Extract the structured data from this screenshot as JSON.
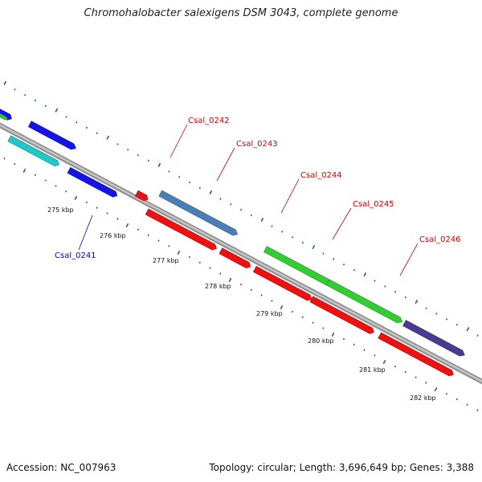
{
  "header": {
    "title": "Chromohalobacter salexigens DSM 3043, complete genome"
  },
  "footer": {
    "accession": "Accession: NC_007963",
    "summary": "Topology: circular; Length: 3,696,649 bp; Genes: 3,388"
  },
  "scale": {
    "ticks": [
      {
        "label": "275 kbp"
      },
      {
        "label": "276 kbp"
      },
      {
        "label": "277 kbp"
      },
      {
        "label": "278 kbp"
      },
      {
        "label": "279 kbp"
      },
      {
        "label": "280 kbp"
      },
      {
        "label": "281 kbp"
      },
      {
        "label": "282 kbp"
      }
    ]
  },
  "genes": {
    "labels": [
      {
        "name": "Csal_0241",
        "color": "#0000cc"
      },
      {
        "name": "Csal_0242",
        "color": "#cc0000"
      },
      {
        "name": "Csal_0243",
        "color": "#cc0000"
      },
      {
        "name": "Csal_0244",
        "color": "#cc0000"
      },
      {
        "name": "Csal_0245",
        "color": "#cc0000"
      },
      {
        "name": "Csal_0246",
        "color": "#cc0000"
      }
    ]
  },
  "colors": {
    "backbone": "#8c8c8c",
    "tick": "#1a7a1a",
    "blue_gene": "#1414e6",
    "cyan_gene": "#22c6c6",
    "red_gene": "#ee1111",
    "steelblue_gene": "#4a7fb5",
    "green_gene": "#33cc33",
    "purple_gene": "#4a3a90"
  }
}
